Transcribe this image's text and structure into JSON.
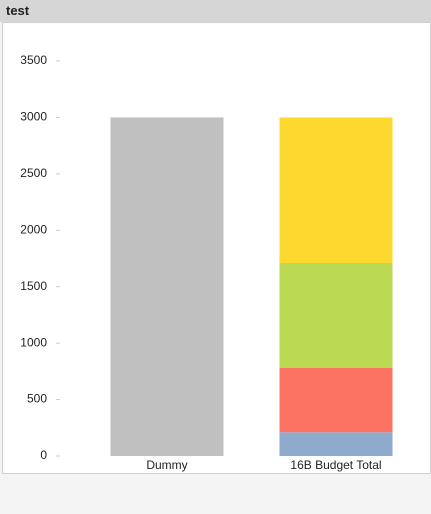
{
  "title": "test",
  "chart_data": {
    "type": "stacked_bar",
    "categories": [
      "Dummy",
      "16B Budget Total"
    ],
    "series": [
      {
        "color": "#c0c0c0",
        "values": [
          3000,
          null
        ]
      },
      {
        "color": "#8eaacc",
        "values": [
          null,
          210
        ],
        "labels": true
      },
      {
        "color": "#fd7363",
        "values": [
          null,
          570
        ]
      },
      {
        "color": "#bcd954",
        "values": [
          null,
          930
        ]
      },
      {
        "color": "#fdd92f",
        "values": [
          null,
          1290
        ]
      }
    ],
    "ylim": [
      0,
      3500
    ],
    "yticks": [
      0,
      500,
      1000,
      1500,
      2000,
      2500,
      3000,
      3500
    ],
    "grid": false
  }
}
